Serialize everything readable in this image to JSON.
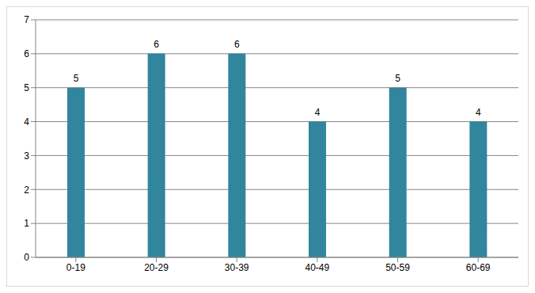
{
  "chart_data": {
    "type": "bar",
    "categories": [
      "0-19",
      "20-29",
      "30-39",
      "40-49",
      "50-59",
      "60-69"
    ],
    "values": [
      5,
      6,
      6,
      4,
      5,
      4
    ],
    "color": "#31859c",
    "ylim": [
      0,
      7
    ],
    "yticks": [
      0,
      1,
      2,
      3,
      4,
      5,
      6,
      7
    ],
    "grid": true,
    "data_labels": true
  }
}
